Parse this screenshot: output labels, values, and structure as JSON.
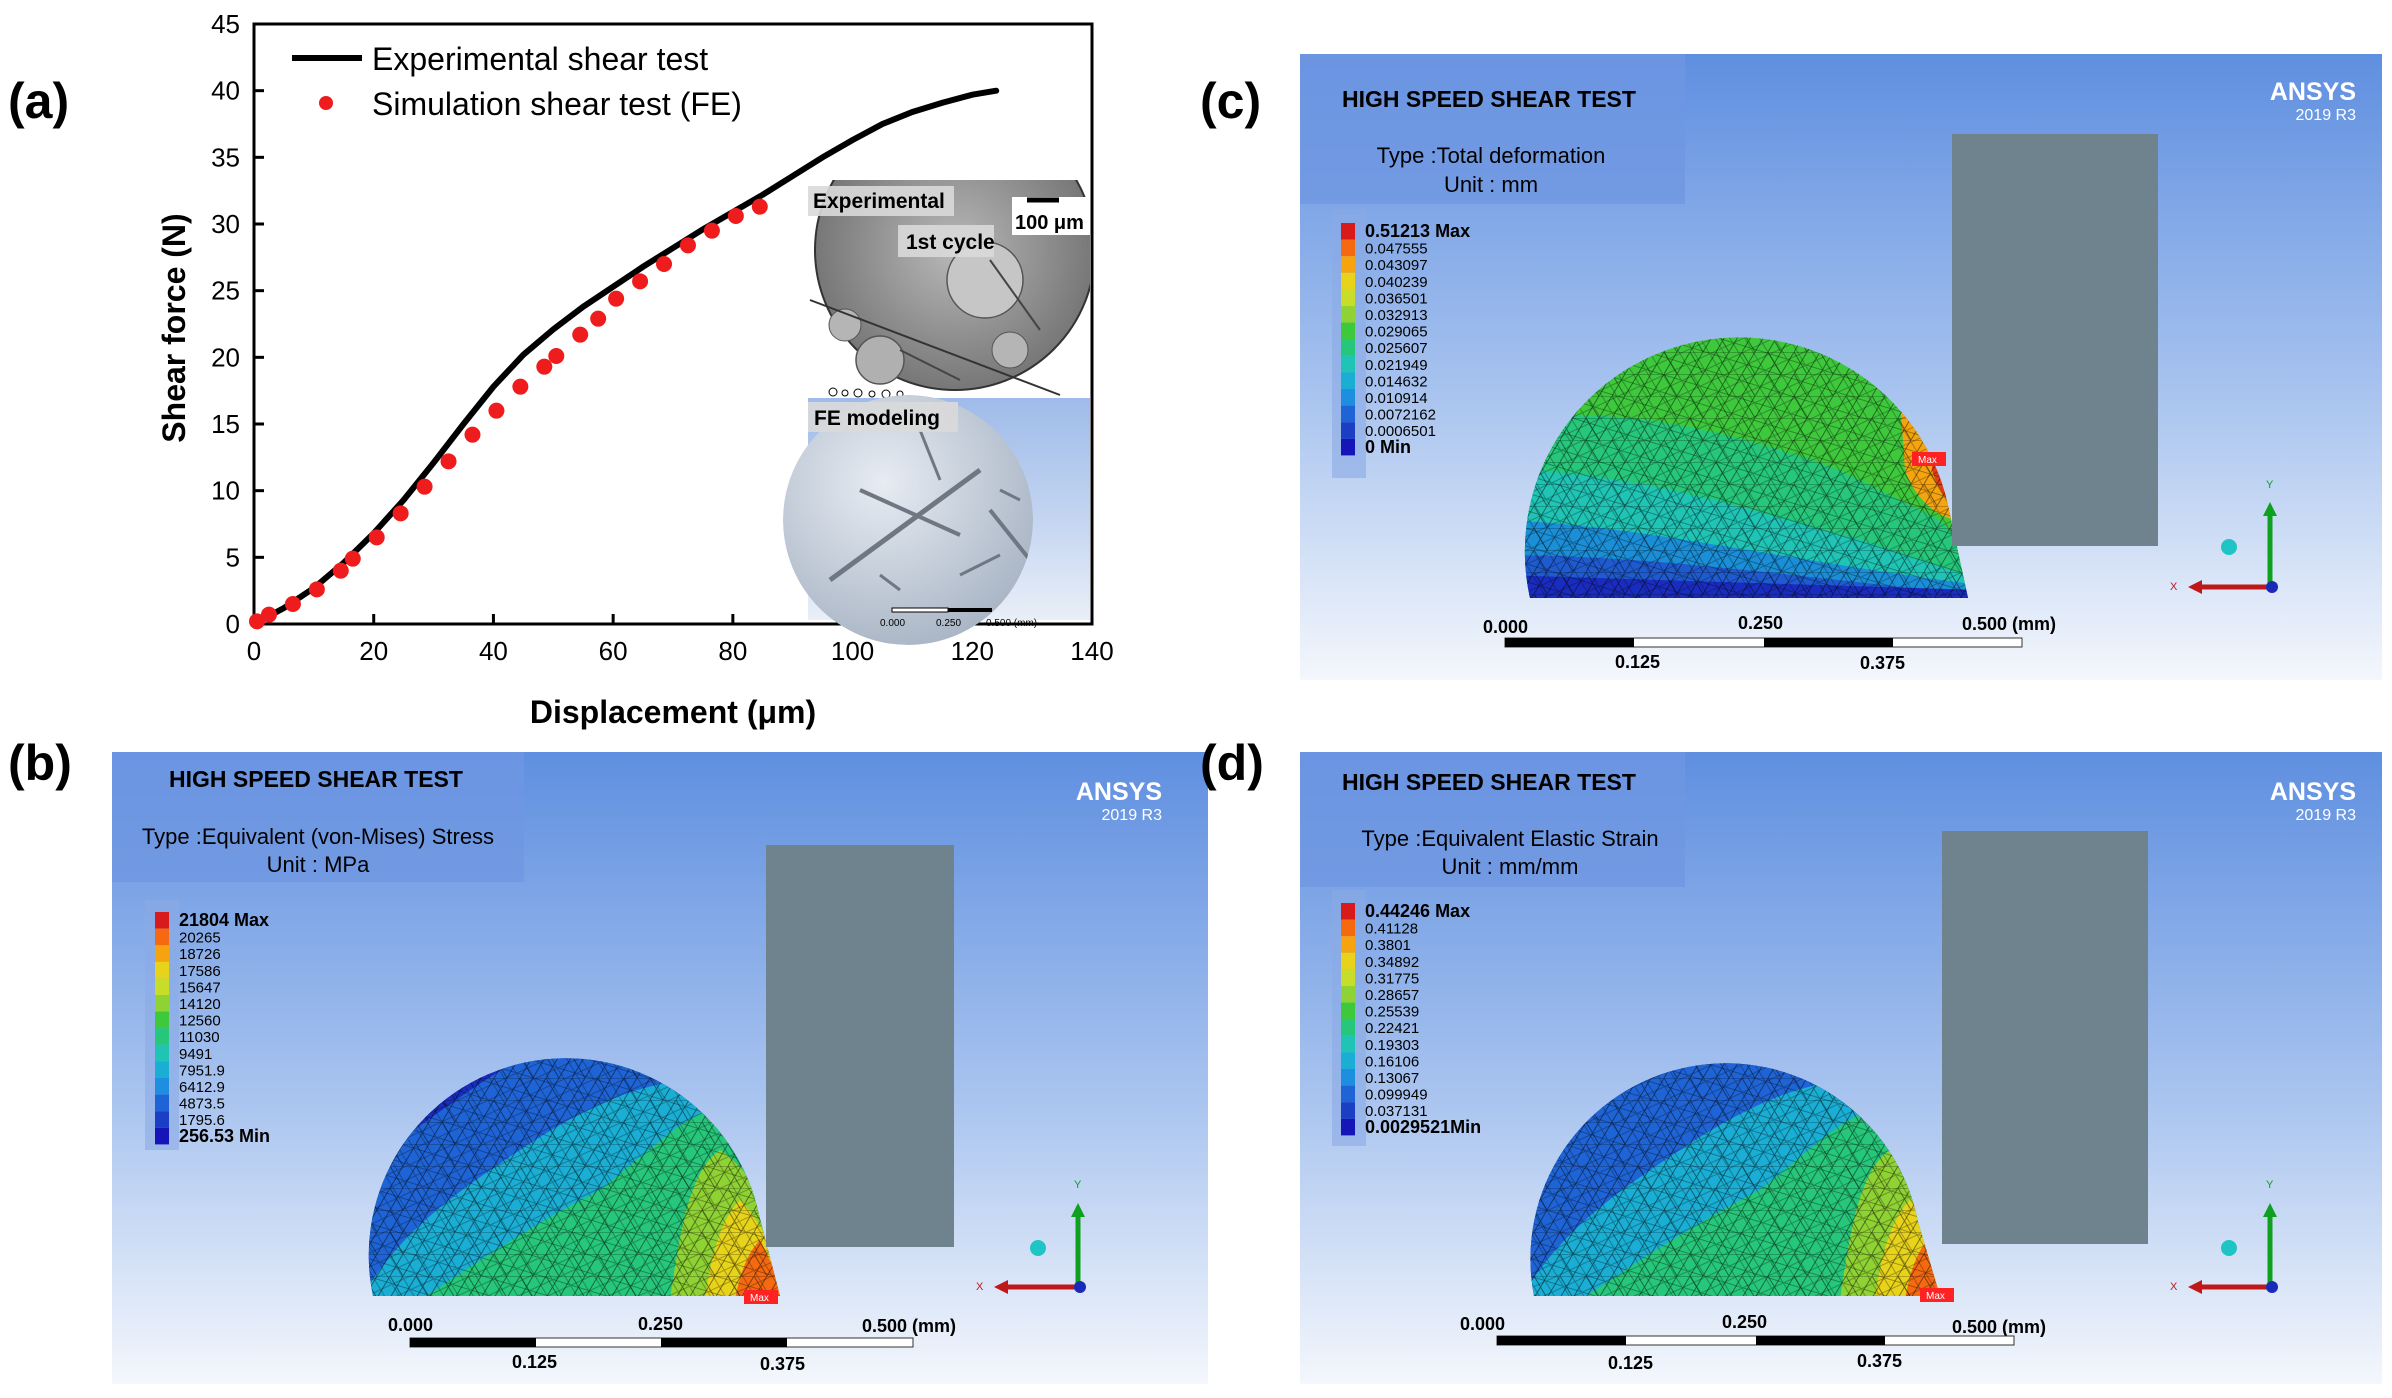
{
  "labels": {
    "a": "(a)",
    "b": "(b)",
    "c": "(c)",
    "d": "(d)"
  },
  "chart_data": {
    "type": "line",
    "xlabel": "Displacement (μm)",
    "ylabel": "Shear force (N)",
    "xlim": [
      0,
      140
    ],
    "ylim": [
      0,
      45
    ],
    "xticks": [
      0,
      20,
      40,
      60,
      80,
      100,
      120,
      140
    ],
    "yticks": [
      0,
      5,
      10,
      15,
      20,
      25,
      30,
      35,
      40,
      45
    ],
    "legend": [
      "Experimental shear test",
      "Simulation shear test (FE)"
    ],
    "series": [
      {
        "name": "Experimental shear test",
        "style": "line",
        "color": "#000000",
        "x": [
          0,
          5,
          10,
          15,
          20,
          25,
          30,
          35,
          40,
          45,
          50,
          55,
          60,
          65,
          70,
          75,
          80,
          85,
          90,
          95,
          100,
          105,
          110,
          115,
          120,
          124
        ],
        "y": [
          0,
          1.2,
          2.7,
          4.6,
          6.8,
          9.3,
          12.1,
          15.0,
          17.8,
          20.2,
          22.1,
          23.8,
          25.3,
          26.8,
          28.2,
          29.6,
          30.9,
          32.2,
          33.6,
          35.0,
          36.3,
          37.5,
          38.4,
          39.1,
          39.7,
          40.0
        ]
      },
      {
        "name": "Simulation shear test (FE)",
        "style": "scatter",
        "color": "#ee1c1c",
        "x": [
          0.5,
          2.5,
          6.5,
          10.5,
          14.5,
          16.5,
          20.5,
          24.5,
          28.5,
          32.5,
          36.5,
          40.5,
          44.5,
          48.5,
          50.5,
          54.5,
          57.5,
          60.5,
          64.5,
          68.5,
          72.5,
          76.5,
          80.5,
          84.5
        ],
        "y": [
          0.2,
          0.7,
          1.5,
          2.6,
          4.0,
          4.9,
          6.5,
          8.3,
          10.3,
          12.2,
          14.2,
          16.0,
          17.8,
          19.3,
          20.1,
          21.7,
          22.9,
          24.4,
          25.7,
          27.0,
          28.4,
          29.5,
          30.6,
          31.3
        ]
      }
    ]
  },
  "inset": {
    "experimental_label": "Experimental",
    "cycle_label": "1st cycle",
    "scale_label": "100 μm",
    "fe_label": "FE modeling",
    "fe_scale": [
      "0.000",
      "0.250",
      "0.500 (mm)"
    ]
  },
  "ansys": {
    "logo": "ANSYS",
    "version": "2019 R3",
    "title": "HIGH SPEED SHEAR TEST",
    "scale_ticks_top": [
      "0.000",
      "0.250",
      "0.500 (mm)"
    ],
    "scale_ticks_bottom": [
      "0.125",
      "0.375"
    ],
    "max_tag": "Max",
    "axis_x": "X",
    "axis_y": "Y",
    "legend_colors": [
      "#d91a1a",
      "#f56a10",
      "#f5a40f",
      "#e8d31b",
      "#c8dc2a",
      "#8fd233",
      "#3ec93c",
      "#26c77a",
      "#1fc4b4",
      "#1aaed4",
      "#1e8ee0",
      "#1f64d6",
      "#1a3ec4",
      "#1515b8"
    ]
  },
  "panel_c": {
    "type_line": "Type :Total deformation",
    "unit_line": "Unit : mm",
    "legend": [
      "0.51213 Max",
      "0.047555",
      "0.043097",
      "0.040239",
      "0.036501",
      "0.032913",
      "0.029065",
      "0.025607",
      "0.021949",
      "0.014632",
      "0.010914",
      "0.0072162",
      "0.0006501",
      "0 Min"
    ]
  },
  "panel_b": {
    "type_line": "Type :Equivalent  (von-Mises) Stress",
    "unit_line": "Unit : MPa",
    "legend": [
      "21804 Max",
      "20265",
      "18726",
      "17586",
      "15647",
      "14120",
      "12560",
      "11030",
      "9491",
      "7951.9",
      "6412.9",
      "4873.5",
      "1795.6",
      "256.53 Min"
    ]
  },
  "panel_d": {
    "type_line": "Type :Equivalent Elastic Strain",
    "unit_line": "Unit : mm/mm",
    "legend": [
      "0.44246  Max",
      "0.41128",
      "0.3801",
      "0.34892",
      "0.31775",
      "0.28657",
      "0.25539",
      "0.22421",
      "0.19303",
      "0.16106",
      "0.13067",
      "0.099949",
      "0.037131",
      "0.0029521Min"
    ]
  }
}
